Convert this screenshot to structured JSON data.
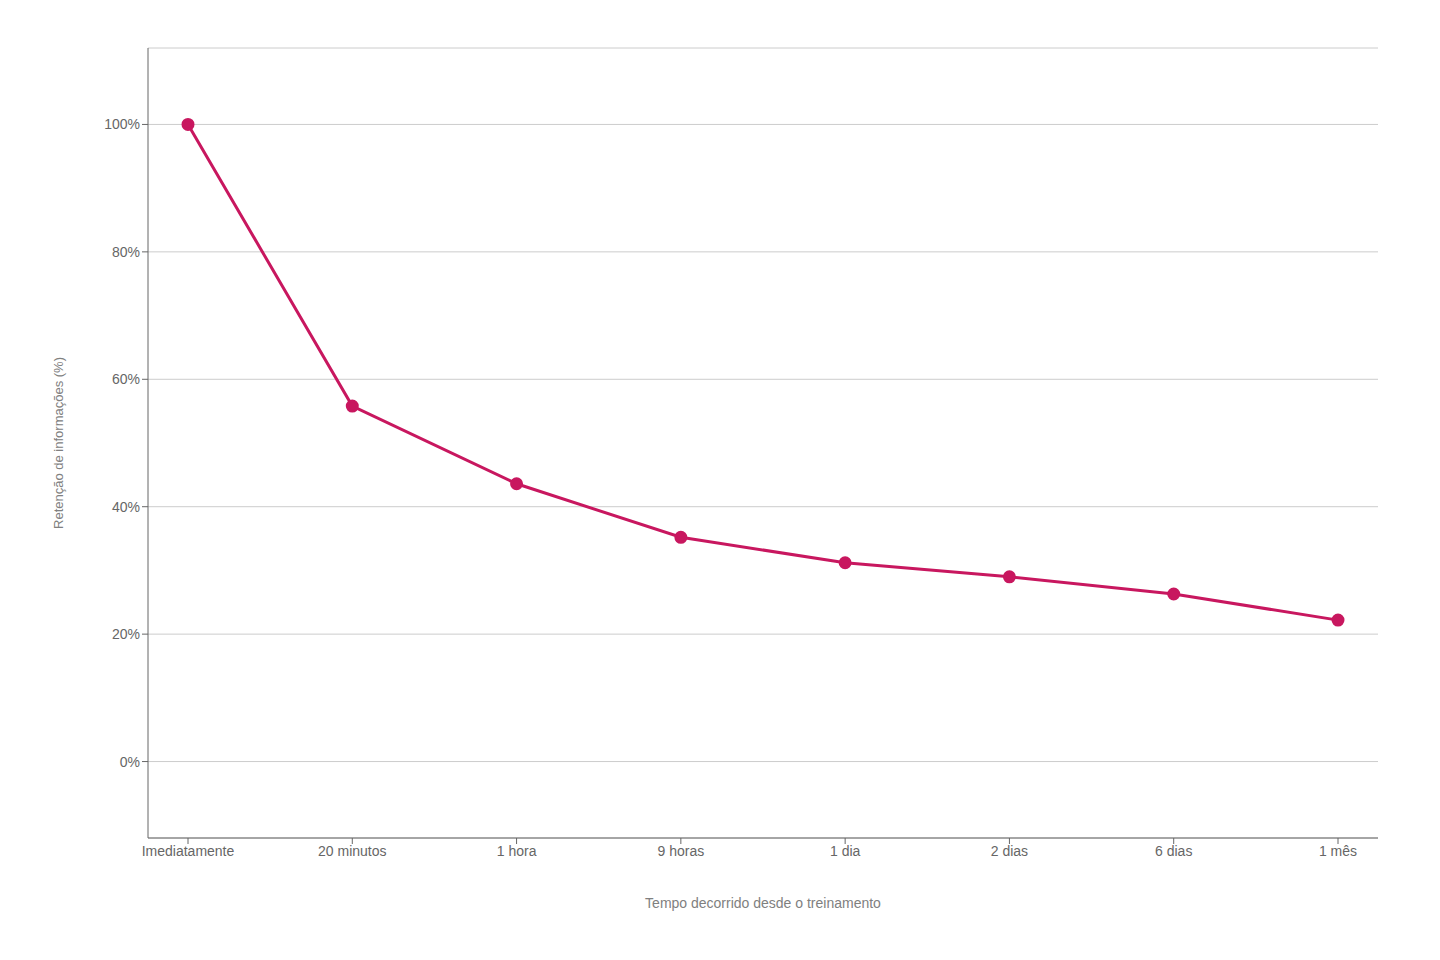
{
  "chart_data": {
    "type": "line",
    "xlabel": "Tempo decorrido desde o treinamento",
    "ylabel": "Retenção de informações (%)",
    "categories": [
      "Imediatamente",
      "20 minutos",
      "1 hora",
      "9 horas",
      "1 dia",
      "2 dias",
      "6 dias",
      "1 mês"
    ],
    "values": [
      1.0,
      0.558,
      0.436,
      0.352,
      0.312,
      0.29,
      0.263,
      0.222
    ],
    "color": "#C8175F",
    "marker": "circle",
    "ylim": [
      -0.12,
      1.12
    ],
    "yticks": [
      {
        "value": 0,
        "label": "0%"
      },
      {
        "value": 0.2,
        "label": "20%"
      },
      {
        "value": 0.4,
        "label": "40%"
      },
      {
        "value": 0.6,
        "label": "60%"
      },
      {
        "value": 0.8,
        "label": "80%"
      },
      {
        "value": 1.0,
        "label": "100%"
      }
    ],
    "grid": true
  }
}
